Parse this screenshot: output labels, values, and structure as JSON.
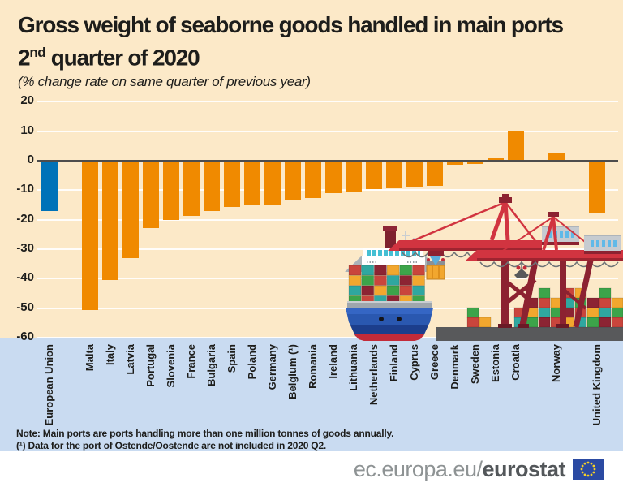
{
  "header": {
    "title_line1": "Gross weight of seaborne goods handled in main ports",
    "title_line2_num": "2",
    "title_line2_sup": "nd",
    "title_line2_rest": " quarter of 2020",
    "subtitle": "(% change rate on same quarter of previous year)"
  },
  "chart_data": {
    "type": "bar",
    "title": "Gross weight of seaborne goods handled in main ports, 2nd quarter of 2020",
    "ylabel": "% change rate on same quarter of previous year",
    "xlabel": "",
    "ylim": [
      -60,
      20
    ],
    "yticks": [
      20,
      10,
      0,
      -10,
      -20,
      -30,
      -40,
      -50,
      -60
    ],
    "grid": true,
    "legend": "none",
    "categories": [
      "European Union",
      "Malta",
      "Italy",
      "Latvia",
      "Portugal",
      "Slovenia",
      "France",
      "Bulgaria",
      "Spain",
      "Poland",
      "Germany",
      "Belgium (¹)",
      "Romania",
      "Ireland",
      "Lithuania",
      "Netherlands",
      "Finland",
      "Cyprus",
      "Greece",
      "Denmark",
      "Sweden",
      "Estonia",
      "Croatia",
      "Norway",
      "United Kingdom"
    ],
    "values": [
      -17.0,
      -50.8,
      -40.4,
      -33.1,
      -22.8,
      -20.2,
      -18.8,
      -17.1,
      -15.6,
      -15.2,
      -14.9,
      -13.3,
      -12.6,
      -10.9,
      -10.4,
      -9.7,
      -9.4,
      -9.0,
      -8.6,
      -1.5,
      -1.0,
      0.7,
      10.0,
      2.7,
      -17.8
    ],
    "bar_color": "#F08A00",
    "highlight": {
      "category": "European Union",
      "color": "#0072B8"
    },
    "gaps_after": [
      "European Union",
      "Croatia",
      "Norway"
    ]
  },
  "note": {
    "line1": "Note: Main ports are ports handling more than one million tonnes of goods annually.",
    "line2": "(¹) Data for the port of Ostende/Oostende are not included in 2020 Q2."
  },
  "footer": {
    "url_prefix": "ec.europa.eu/",
    "url_bold": "eurostat"
  },
  "colors": {
    "background": "#FCE9C8",
    "label_strip": "#C9DBF1",
    "bar_orange": "#F08A00",
    "eu_blue": "#0072B8",
    "zero_line": "#4D4D4D",
    "text": "#1D1D1B"
  }
}
